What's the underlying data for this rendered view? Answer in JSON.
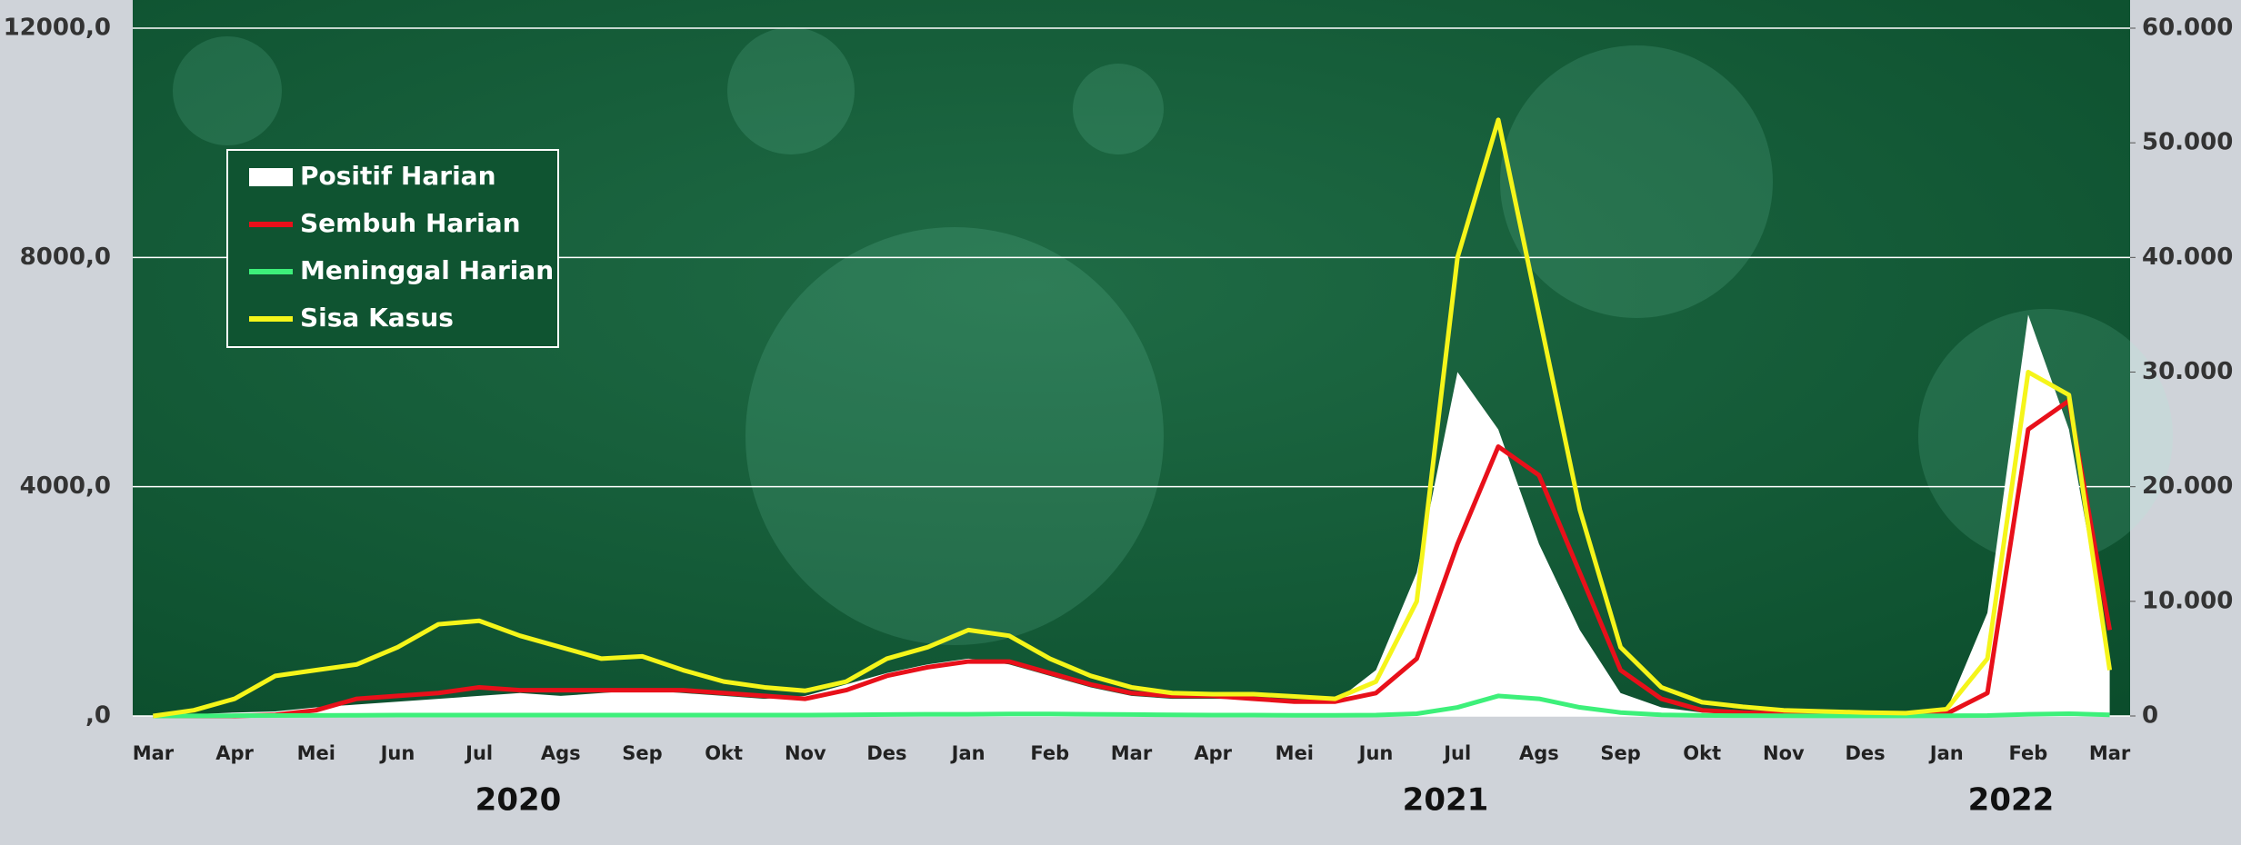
{
  "chart_data": {
    "type": "line",
    "categories": [
      "Mar",
      null,
      "Apr",
      null,
      "Mei",
      null,
      "Jun",
      null,
      "Jul",
      null,
      "Ags",
      null,
      "Sep",
      null,
      "Okt",
      null,
      "Nov",
      null,
      "Des",
      null,
      "Jan",
      null,
      "Feb",
      null,
      "Mar",
      null,
      "Apr",
      null,
      "Mei",
      null,
      "Jun",
      null,
      "Jul",
      null,
      "Ags",
      null,
      "Sep",
      null,
      "Okt",
      null,
      "Nov",
      null,
      "Des",
      null,
      "Jan",
      null,
      "Feb",
      null,
      "Mar"
    ],
    "years": [
      "2020",
      "2021",
      "2022"
    ],
    "series": [
      {
        "name": "Positif Harian",
        "color": "#ffffff",
        "style": "area",
        "values": [
          10,
          30,
          60,
          80,
          150,
          200,
          250,
          300,
          350,
          400,
          350,
          400,
          450,
          400,
          350,
          300,
          350,
          550,
          750,
          900,
          1000,
          900,
          700,
          500,
          350,
          300,
          300,
          300,
          250,
          250,
          800,
          2500,
          6000,
          5000,
          3000,
          1500,
          400,
          150,
          60,
          40,
          30,
          20,
          20,
          25,
          100,
          1800,
          7000,
          5000,
          1000
        ]
      },
      {
        "name": "Sembuh Harian",
        "color": "#e8101a",
        "style": "line",
        "values": [
          0,
          0,
          0,
          20,
          100,
          300,
          350,
          400,
          500,
          450,
          450,
          450,
          450,
          450,
          400,
          350,
          300,
          450,
          700,
          850,
          950,
          950,
          750,
          550,
          400,
          350,
          350,
          300,
          250,
          250,
          400,
          1000,
          3000,
          4700,
          4200,
          2500,
          800,
          300,
          100,
          60,
          40,
          30,
          20,
          20,
          40,
          400,
          5000,
          5500,
          1500
        ]
      },
      {
        "name": "Meninggal Harian",
        "color": "#3df07a",
        "style": "line",
        "values": [
          0,
          2,
          5,
          8,
          10,
          12,
          15,
          15,
          15,
          15,
          15,
          15,
          15,
          15,
          15,
          15,
          15,
          20,
          25,
          30,
          30,
          35,
          35,
          30,
          25,
          20,
          15,
          15,
          12,
          12,
          15,
          40,
          150,
          350,
          300,
          150,
          60,
          20,
          10,
          5,
          3,
          2,
          2,
          2,
          3,
          8,
          30,
          40,
          20
        ]
      },
      {
        "name": "Sisa Kasus",
        "color": "#f5f51a",
        "style": "line",
        "axis": "y2",
        "values": [
          0,
          500,
          1500,
          3500,
          4000,
          4500,
          6000,
          8000,
          8300,
          7000,
          6000,
          5000,
          5200,
          4000,
          3000,
          2500,
          2200,
          3000,
          5000,
          6000,
          7500,
          7000,
          5000,
          3500,
          2500,
          2000,
          1900,
          1900,
          1700,
          1500,
          3000,
          10000,
          40000,
          52000,
          35000,
          18000,
          6000,
          2500,
          1200,
          800,
          500,
          400,
          300,
          250,
          600,
          5000,
          30000,
          28000,
          4000
        ]
      }
    ],
    "ylim": [
      0,
      12000
    ],
    "yticks": [
      {
        "value": 0,
        "label": ",0"
      },
      {
        "value": 4000,
        "label": "4000,0"
      },
      {
        "value": 8000,
        "label": "8000,0"
      },
      {
        "value": 12000,
        "label": "12000,0"
      }
    ],
    "y2lim": [
      0,
      60000
    ],
    "y2ticks": [
      0,
      {
        "value": 10000,
        "label": "10.000"
      },
      {
        "value": 20000,
        "label": "20.000"
      },
      {
        "value": 30000,
        "label": "30.000"
      },
      {
        "value": 40000,
        "label": "40.000"
      },
      {
        "value": 50000,
        "label": "50.000"
      },
      {
        "value": 60000,
        "label": "60.000"
      }
    ],
    "grid": true,
    "legend_position": "upper left"
  }
}
